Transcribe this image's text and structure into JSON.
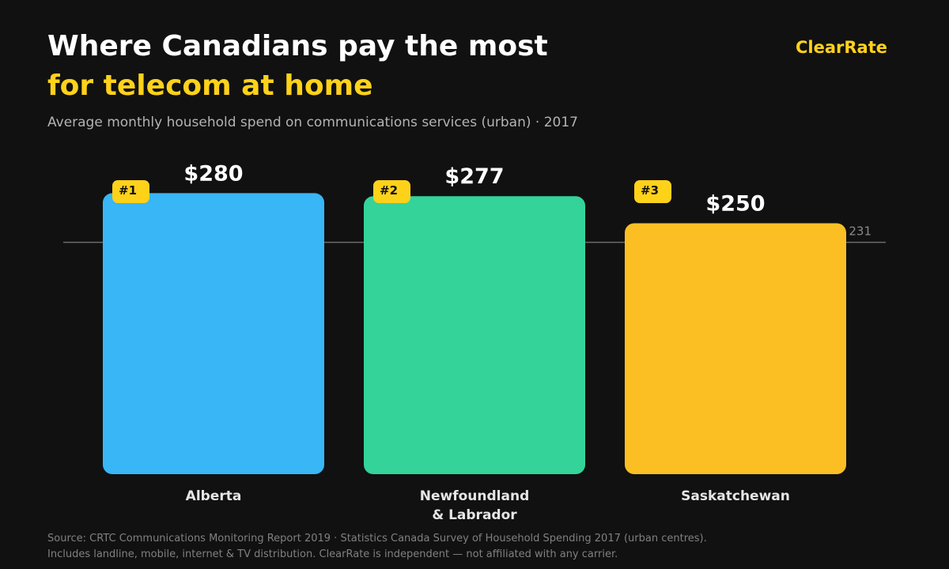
{
  "header": {
    "title_line1": "Where Canadians pay the most",
    "title_line2": "for telecom at home",
    "subtitle": "Average monthly household spend on communications services (urban) · 2017",
    "brand": "ClearRate"
  },
  "chart_data": {
    "type": "bar",
    "categories": [
      [
        "Alberta"
      ],
      [
        "Newfoundland",
        "& Labrador"
      ],
      [
        "Saskatchewan"
      ]
    ],
    "values": [
      280,
      277,
      250
    ],
    "value_labels": [
      "$280",
      "$277",
      "$250"
    ],
    "rank_badges": [
      "#1",
      "#2",
      "#3"
    ],
    "bar_colors": [
      "#38b6f5",
      "#34d399",
      "#fbbf24"
    ],
    "reference_line": {
      "value": 231,
      "label": "231"
    },
    "ylim": [
      0,
      280
    ],
    "grid": false
  },
  "footer": {
    "line1": "Source: CRTC Communications Monitoring Report 2019 · Statistics Canada Survey of Household Spending 2017 (urban centres).",
    "line2": "Includes landline, mobile, internet & TV distribution. ClearRate is independent — not affiliated with any carrier."
  },
  "colors": {
    "background": "#111111",
    "accent": "#ffd21a",
    "badge_text": "#111111",
    "reference_line": "#6b6b6b",
    "reference_label": "#8a8a8a",
    "category_label": "#e6e6e6"
  }
}
